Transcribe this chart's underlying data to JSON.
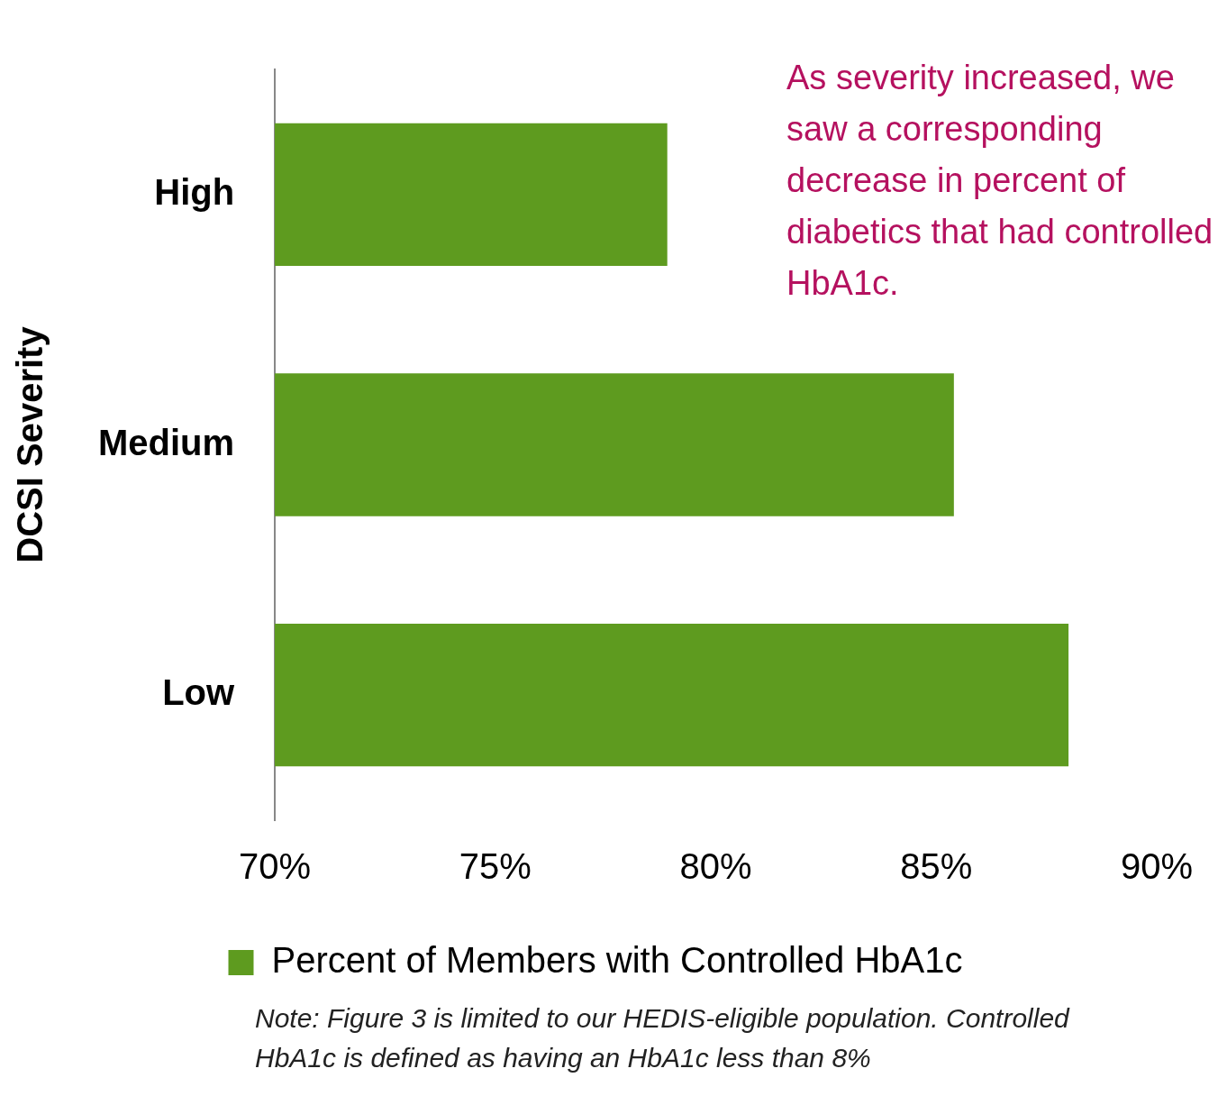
{
  "chart_data": {
    "type": "bar",
    "orientation": "horizontal",
    "ylabel": "DCSI Severity",
    "categories": [
      "High",
      "Medium",
      "Low"
    ],
    "series": [
      {
        "name": "Percent of Members with Controlled HbA1c",
        "color": "#5e9b1f",
        "values": [
          78.9,
          85.4,
          88.0
        ]
      }
    ],
    "xlim": [
      70,
      90
    ],
    "xticks": [
      {
        "value": 70,
        "label": "70%"
      },
      {
        "value": 75,
        "label": "75%"
      },
      {
        "value": 80,
        "label": "80%"
      },
      {
        "value": 85,
        "label": "85%"
      },
      {
        "value": 90,
        "label": "90%"
      }
    ],
    "grid": false,
    "legend": "bottom",
    "annotations": [
      "As severity increased, we saw a corresponding decrease in percent of diabetics that had controlled HbA1c.",
      "Note:  Figure 3 is limited to our HEDIS-eligible population. Controlled HbA1c is defined as having an HbA1c less than 8%"
    ]
  }
}
